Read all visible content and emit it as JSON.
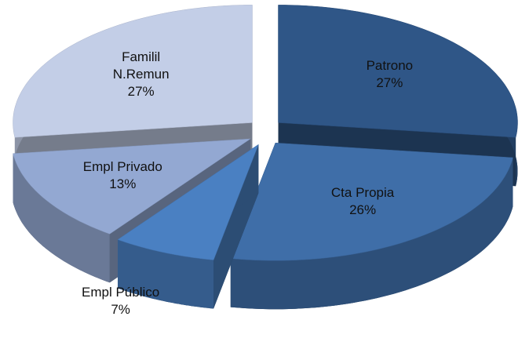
{
  "chart_data": {
    "type": "pie",
    "categories": [
      "Patrono",
      "Cta Propia",
      "Empl Público",
      "Empl Privado",
      "Familil N.Remun"
    ],
    "values": [
      27,
      26,
      7,
      13,
      27
    ],
    "value_labels": [
      "27%",
      "26%",
      "7%",
      "13%",
      "27%"
    ],
    "colors": [
      "#2f5687",
      "#3f6ea8",
      "#4a80c2",
      "#93a8d2",
      "#c3cee7"
    ]
  }
}
